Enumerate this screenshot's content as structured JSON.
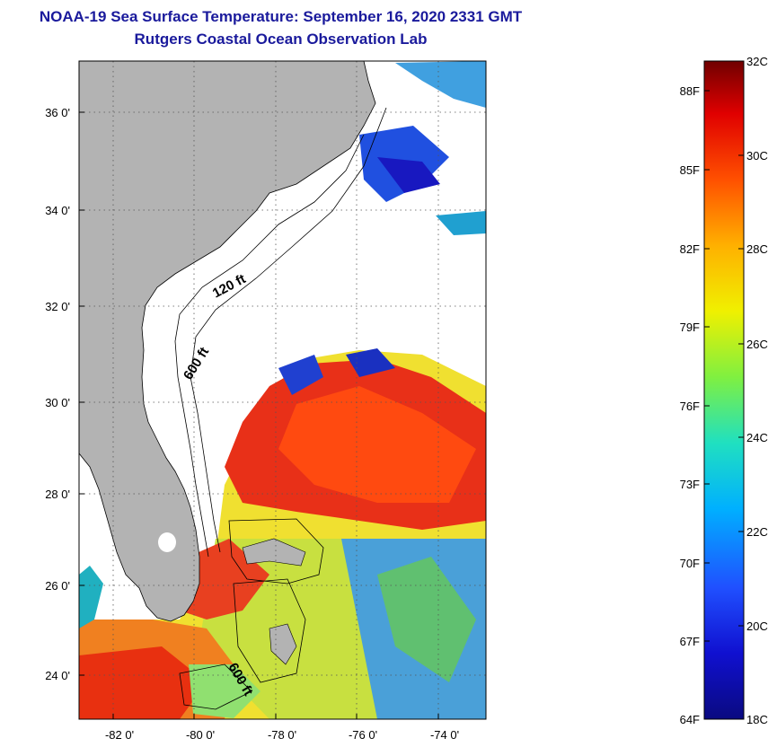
{
  "header": {
    "title": "NOAA-19 Sea Surface Temperature:  September 16, 2020 2331 GMT",
    "subtitle": "Rutgers Coastal Ocean Observation Lab"
  },
  "map": {
    "lat_labels": [
      "36 0'",
      "34 0'",
      "32 0'",
      "30 0'",
      "28 0'",
      "26 0'",
      "24 0'"
    ],
    "lon_labels": [
      "-82 0'",
      "-80 0'",
      "-78 0'",
      "-76 0'",
      "-74 0'"
    ],
    "contour_labels": [
      "120 ft",
      "600 ft",
      "600 ft"
    ],
    "colors": {
      "land": "#b3b3b3",
      "cloud": "#ffffff"
    }
  },
  "colorbar": {
    "fahrenheit": [
      "88F",
      "85F",
      "82F",
      "79F",
      "76F",
      "73F",
      "70F",
      "67F",
      "64F"
    ],
    "celsius": [
      "32C",
      "30C",
      "28C",
      "26C",
      "24C",
      "22C",
      "20C",
      "18C"
    ]
  }
}
